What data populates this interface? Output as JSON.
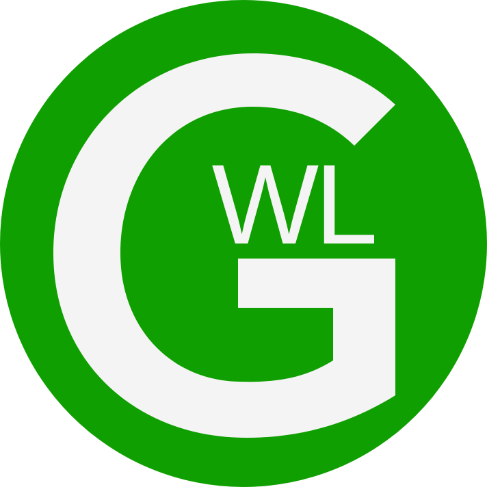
{
  "logo": {
    "letter_main": "G",
    "letters_inner": "WL",
    "colors": {
      "circle": "#0f9f00",
      "glyph": "#f4f4f4",
      "background": "#ffffff"
    }
  }
}
